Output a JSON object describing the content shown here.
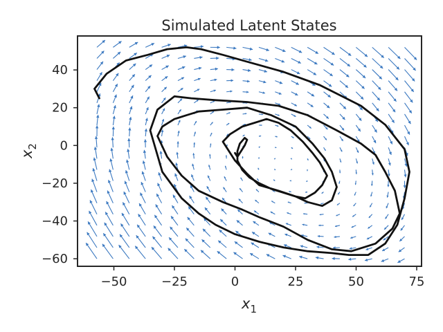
{
  "chart_data": {
    "type": "line",
    "title": "Simulated Latent States",
    "xlabel_base": "x",
    "xlabel_sub": "1",
    "ylabel_base": "x",
    "ylabel_sub": "2",
    "xlim": [
      -65,
      77
    ],
    "ylim": [
      -64,
      58
    ],
    "xticks": [
      -50,
      -25,
      0,
      25,
      50,
      75
    ],
    "yticks": [
      -60,
      -40,
      -20,
      0,
      20,
      40
    ],
    "xtick_labels": [
      "−50",
      "−25",
      "0",
      "25",
      "50",
      "75"
    ],
    "ytick_labels": [
      "−60",
      "−40",
      "−20",
      "0",
      "20",
      "40"
    ],
    "grid": false,
    "colors": {
      "trajectory": "#111111",
      "quiver": "#3a78c0",
      "axes": "#262626"
    },
    "vector_field": {
      "x_range": [
        -57,
        70
      ],
      "x_count": 20,
      "y_range": [
        -60,
        52
      ],
      "y_count": 20
    },
    "trajectory": {
      "x": [
        -56,
        -58,
        -53,
        -45,
        -36,
        -28,
        -20,
        -14,
        -5,
        6,
        20,
        35,
        52,
        62,
        70,
        72,
        70,
        67,
        62,
        55,
        47,
        40,
        30,
        20,
        10,
        0,
        -8,
        -15,
        -22,
        -30,
        -35,
        -32,
        -25,
        -18,
        -8,
        5,
        18,
        30,
        42,
        52,
        58,
        62,
        66,
        68,
        65,
        58,
        48,
        40,
        30,
        20,
        10,
        3,
        -5,
        -15,
        -22,
        -28,
        -32,
        -30,
        -25,
        -20,
        -15,
        -5,
        5,
        15,
        25,
        32,
        37,
        40,
        42,
        40,
        36,
        30,
        25,
        18,
        10,
        5,
        0,
        -3,
        -5,
        -2,
        3,
        8,
        13,
        18,
        23,
        28,
        32,
        35,
        38,
        36,
        33,
        29,
        25,
        20,
        15,
        10,
        6,
        3,
        1,
        1,
        2,
        4,
        5,
        4,
        3,
        2,
        1,
        0
      ],
      "y": [
        25,
        30,
        38,
        45,
        48,
        51,
        52,
        51,
        48,
        44,
        39,
        32,
        21,
        11,
        -2,
        -14,
        -28,
        -42,
        -52,
        -58,
        -58,
        -57,
        -56,
        -54,
        -51,
        -47,
        -42,
        -36,
        -28,
        -14,
        8,
        19,
        26,
        25,
        24,
        23,
        21,
        16,
        8,
        1,
        -5,
        -14,
        -24,
        -36,
        -44,
        -52,
        -56,
        -55,
        -50,
        -43,
        -38,
        -34,
        -30,
        -24,
        -16,
        -6,
        5,
        10,
        14,
        16,
        18,
        19,
        20,
        16,
        10,
        1,
        -7,
        -14,
        -22,
        -29,
        -32,
        -30,
        -27,
        -24,
        -21,
        -15,
        -8,
        -2,
        2,
        6,
        10,
        12,
        14,
        12,
        8,
        2,
        -4,
        -9,
        -16,
        -21,
        -25,
        -28,
        -27,
        -25,
        -23,
        -20,
        -17,
        -13,
        -8,
        -3,
        1,
        4,
        3,
        0,
        -2,
        -4,
        -6,
        -4
      ]
    }
  }
}
